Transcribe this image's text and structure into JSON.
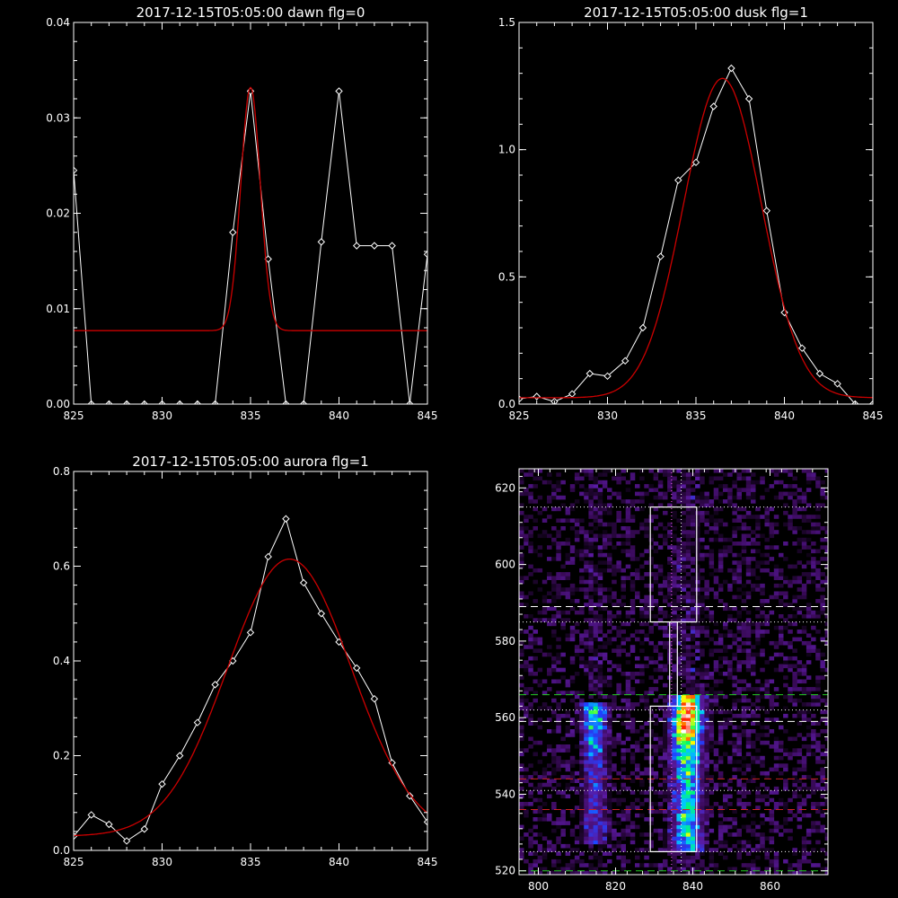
{
  "colors": {
    "background": "#000000",
    "axes": "#ffffff",
    "data_line": "#ffffff",
    "fit_line": "#cc0000",
    "guide_white": "#ffffff",
    "guide_green": "#22cc22",
    "guide_red": "#cc2222",
    "guide_magenta": "#ff66ff"
  },
  "chart_data": [
    {
      "id": "dawn",
      "type": "line",
      "title": "2017-12-15T05:05:00 dawn flg=0",
      "xlim": [
        825,
        845
      ],
      "ylim": [
        0,
        0.04
      ],
      "xticks": [
        "825",
        "830",
        "835",
        "840",
        "845"
      ],
      "yticks": [
        "0.00",
        "0.01",
        "0.02",
        "0.03",
        "0.04"
      ],
      "series": [
        {
          "role": "data",
          "marker": "diamond",
          "x": [
            825,
            826,
            827,
            828,
            829,
            830,
            831,
            832,
            833,
            834,
            835,
            836,
            837,
            838,
            839,
            840,
            841,
            842,
            843,
            844,
            845
          ],
          "y": [
            0.0245,
            0,
            0,
            0,
            0,
            0,
            0,
            0,
            0,
            0.018,
            0.0328,
            0.0152,
            0,
            0,
            0.017,
            0.0328,
            0.0166,
            0.0166,
            0.0166,
            0,
            0.0157
          ]
        },
        {
          "role": "fit",
          "model": "gaussian",
          "amplitude": 0.0255,
          "center": 835,
          "sigma": 0.55,
          "offset": 0.0077
        }
      ]
    },
    {
      "id": "dusk",
      "type": "line",
      "title": "2017-12-15T05:05:00 dusk flg=1",
      "xlim": [
        825,
        845
      ],
      "ylim": [
        0,
        1.5
      ],
      "xticks": [
        "825",
        "830",
        "835",
        "840",
        "845"
      ],
      "yticks": [
        "0.0",
        "0.5",
        "1.0",
        "1.5"
      ],
      "series": [
        {
          "role": "data",
          "marker": "diamond",
          "x": [
            825,
            826,
            827,
            828,
            829,
            830,
            831,
            832,
            833,
            834,
            835,
            836,
            837,
            838,
            839,
            840,
            841,
            842,
            843,
            844,
            845
          ],
          "y": [
            0.02,
            0.03,
            0.01,
            0.04,
            0.12,
            0.11,
            0.17,
            0.3,
            0.58,
            0.88,
            0.95,
            1.17,
            1.32,
            1.2,
            0.76,
            0.36,
            0.22,
            0.12,
            0.08,
            0,
            0
          ]
        },
        {
          "role": "fit",
          "model": "gaussian",
          "amplitude": 1.255,
          "center": 836.5,
          "sigma": 2.2,
          "offset": 0.025
        }
      ]
    },
    {
      "id": "aurora",
      "type": "line",
      "title": "2017-12-15T05:05:00 aurora flg=1",
      "xlim": [
        825,
        845
      ],
      "ylim": [
        0,
        0.8
      ],
      "xticks": [
        "825",
        "830",
        "835",
        "840",
        "845"
      ],
      "yticks": [
        "0.0",
        "0.2",
        "0.4",
        "0.6",
        "0.8"
      ],
      "series": [
        {
          "role": "data",
          "marker": "diamond",
          "x": [
            825,
            826,
            827,
            828,
            829,
            830,
            831,
            832,
            833,
            834,
            835,
            836,
            837,
            838,
            839,
            840,
            841,
            842,
            843,
            844,
            845
          ],
          "y": [
            0.03,
            0.075,
            0.055,
            0.02,
            0.045,
            0.14,
            0.2,
            0.27,
            0.35,
            0.4,
            0.46,
            0.62,
            0.7,
            0.565,
            0.5,
            0.44,
            0.385,
            0.32,
            0.185,
            0.115,
            0.06
          ]
        },
        {
          "role": "fit",
          "model": "gaussian",
          "amplitude": 0.585,
          "center": 837.2,
          "sigma": 3.5,
          "offset": 0.03
        }
      ]
    },
    {
      "id": "spectrogram",
      "type": "heatmap",
      "title": "",
      "xlim": [
        795,
        875
      ],
      "ylim": [
        519,
        625
      ],
      "xticks": [
        "800",
        "820",
        "840",
        "860"
      ],
      "yticks": [
        "520",
        "540",
        "560",
        "580",
        "600",
        "620"
      ],
      "colormap": [
        "#000000",
        "#3a0a5a",
        "#5a1aa0",
        "#2040ff",
        "#00c8ff",
        "#00ff60",
        "#ffff00",
        "#ff2000",
        "#ffffff"
      ],
      "emission_columns": [
        {
          "x_center": 838,
          "x_width": 5,
          "y_range": [
            525,
            565
          ],
          "peak_y": 560,
          "strength": 1.0
        },
        {
          "x_center": 814,
          "x_width": 4,
          "y_range": [
            527,
            563
          ],
          "peak_y": 561,
          "strength": 0.55
        }
      ],
      "boxes": [
        {
          "x": [
            829,
            841
          ],
          "y": [
            525,
            563
          ],
          "style": "solid",
          "color": "white"
        },
        {
          "x": [
            829,
            841
          ],
          "y": [
            585,
            615
          ],
          "style": "solid",
          "color": "white"
        },
        {
          "x": [
            834,
            836
          ],
          "y": [
            563,
            585
          ],
          "style": "solid",
          "color": "white"
        }
      ],
      "hlines": [
        {
          "y": 615,
          "style": "dotted",
          "color": "white"
        },
        {
          "y": 589,
          "style": "dashed",
          "color": "white"
        },
        {
          "y": 585,
          "style": "dotted",
          "color": "white"
        },
        {
          "y": 566,
          "style": "dashed",
          "color": "green"
        },
        {
          "y": 562,
          "style": "dotted",
          "color": "white"
        },
        {
          "y": 559,
          "style": "dashed",
          "color": "white"
        },
        {
          "y": 544,
          "style": "dashed",
          "color": "red"
        },
        {
          "y": 541,
          "style": "dotted",
          "color": "white"
        },
        {
          "y": 536,
          "style": "dashed",
          "color": "red"
        },
        {
          "y": 525,
          "style": "dotted",
          "color": "white"
        },
        {
          "y": 520,
          "style": "dashed",
          "color": "green"
        }
      ],
      "vlines": [
        {
          "x": 834.5,
          "style": "dotted",
          "color": "magenta"
        },
        {
          "x": 837,
          "style": "dotted",
          "color": "white"
        }
      ]
    }
  ]
}
